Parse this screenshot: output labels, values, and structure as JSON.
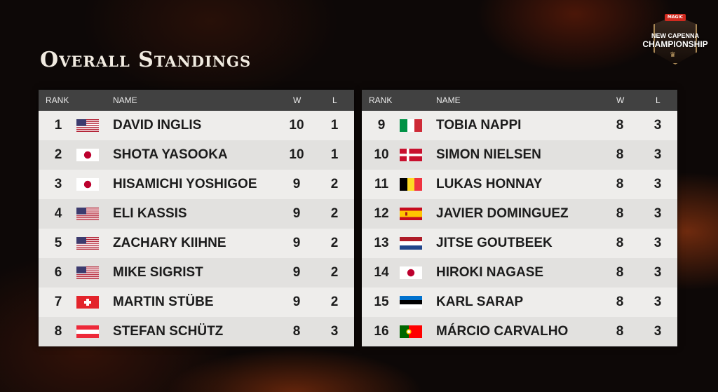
{
  "title": "Overall Standings",
  "logo": {
    "badge": "MAGIC",
    "line1": "NEW CAPENNA",
    "line2": "CHAMPIONSHIP"
  },
  "headers": {
    "rank": "RANK",
    "name": "NAME",
    "w": "W",
    "l": "L"
  },
  "left_rows": [
    {
      "rank": "1",
      "flag": "us-flag-icon",
      "name": "DAVID INGLIS",
      "w": "10",
      "l": "1"
    },
    {
      "rank": "2",
      "flag": "jp-flag-icon",
      "name": "SHOTA YASOOKA",
      "w": "10",
      "l": "1"
    },
    {
      "rank": "3",
      "flag": "jp-flag-icon",
      "name": "HISAMICHI YOSHIGOE",
      "w": "9",
      "l": "2"
    },
    {
      "rank": "4",
      "flag": "us-flag-icon",
      "name": "ELI KASSIS",
      "w": "9",
      "l": "2"
    },
    {
      "rank": "5",
      "flag": "us-flag-icon",
      "name": "ZACHARY KIIHNE",
      "w": "9",
      "l": "2"
    },
    {
      "rank": "6",
      "flag": "us-flag-icon",
      "name": "MIKE SIGRIST",
      "w": "9",
      "l": "2"
    },
    {
      "rank": "7",
      "flag": "ch-flag-icon",
      "name": "MARTIN STÜBE",
      "w": "9",
      "l": "2"
    },
    {
      "rank": "8",
      "flag": "at-flag-icon",
      "name": "STEFAN SCHÜTZ",
      "w": "8",
      "l": "3"
    }
  ],
  "right_rows": [
    {
      "rank": "9",
      "flag": "it-flag-icon",
      "name": "TOBIA NAPPI",
      "w": "8",
      "l": "3"
    },
    {
      "rank": "10",
      "flag": "dk-flag-icon",
      "name": "SIMON NIELSEN",
      "w": "8",
      "l": "3"
    },
    {
      "rank": "11",
      "flag": "be-flag-icon",
      "name": "LUKAS HONNAY",
      "w": "8",
      "l": "3"
    },
    {
      "rank": "12",
      "flag": "es-flag-icon",
      "name": "JAVIER DOMINGUEZ",
      "w": "8",
      "l": "3"
    },
    {
      "rank": "13",
      "flag": "nl-flag-icon",
      "name": "JITSE GOUTBEEK",
      "w": "8",
      "l": "3"
    },
    {
      "rank": "14",
      "flag": "jp-flag-icon",
      "name": "HIROKI NAGASE",
      "w": "8",
      "l": "3"
    },
    {
      "rank": "15",
      "flag": "ee-flag-icon",
      "name": "KARL SARAP",
      "w": "8",
      "l": "3"
    },
    {
      "rank": "16",
      "flag": "pt-flag-icon",
      "name": "MÁRCIO CARVALHO",
      "w": "8",
      "l": "3"
    }
  ]
}
